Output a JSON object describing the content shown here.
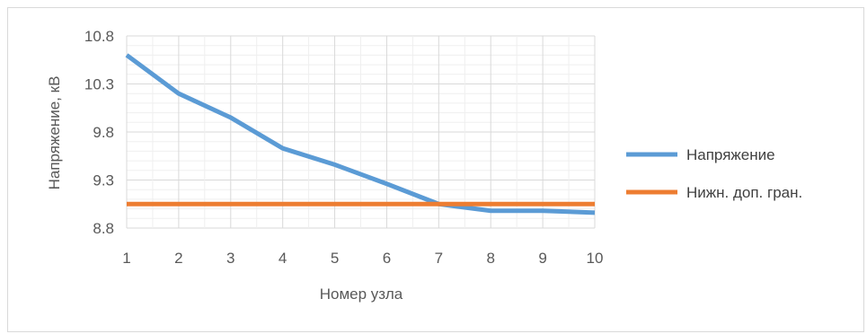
{
  "chart_data": {
    "type": "line",
    "x": [
      1,
      2,
      3,
      4,
      5,
      6,
      7,
      8,
      9,
      10
    ],
    "xlabel": "Номер узла",
    "ylabel": "Напряжение, кВ",
    "ylim": [
      8.8,
      10.8
    ],
    "yticks": [
      "8.8",
      "9.3",
      "9.8",
      "10.3",
      "10.8"
    ],
    "xticks": [
      "1",
      "2",
      "3",
      "4",
      "5",
      "6",
      "7",
      "8",
      "9",
      "10"
    ],
    "grid": true,
    "legend_position": "right",
    "series": [
      {
        "name": "Напряжение",
        "color": "#5b9bd5",
        "values": [
          10.6,
          10.2,
          9.95,
          9.63,
          9.46,
          9.26,
          9.05,
          8.98,
          8.98,
          8.96
        ]
      },
      {
        "name": "Нижн. доп. гран.",
        "color": "#ed7d31",
        "values": [
          9.05,
          9.05,
          9.05,
          9.05,
          9.05,
          9.05,
          9.05,
          9.05,
          9.05,
          9.05
        ]
      }
    ]
  }
}
